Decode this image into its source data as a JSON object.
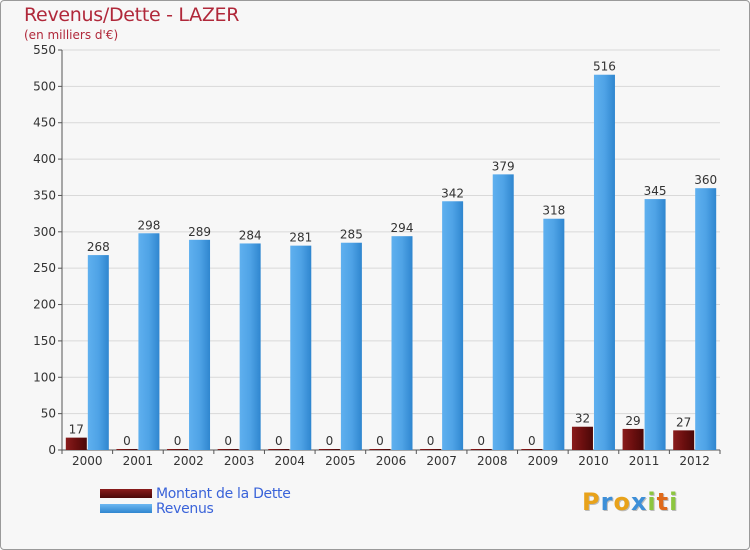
{
  "chart_data": {
    "type": "bar",
    "title": "Revenus/Dette - LAZER",
    "subtitle": "(en milliers d'€)",
    "categories": [
      "2000",
      "2001",
      "2002",
      "2003",
      "2004",
      "2005",
      "2006",
      "2007",
      "2008",
      "2009",
      "2010",
      "2011",
      "2012"
    ],
    "series": [
      {
        "name": "Montant de la Dette",
        "color": "#6b0f0f",
        "values": [
          17,
          0,
          0,
          0,
          0,
          0,
          0,
          0,
          0,
          0,
          32,
          29,
          27
        ]
      },
      {
        "name": "Revenus",
        "color": "#4fa3e6",
        "values": [
          268,
          298,
          289,
          284,
          281,
          285,
          294,
          342,
          379,
          318,
          516,
          345,
          360
        ]
      }
    ],
    "ylim": [
      0,
      550
    ],
    "yticks": [
      0,
      50,
      100,
      150,
      200,
      250,
      300,
      350,
      400,
      450,
      500,
      550
    ],
    "xlabel": "",
    "ylabel": "",
    "grid": true,
    "legend_position": "bottom-left"
  },
  "logo": {
    "text": "Proxiti",
    "letters": [
      {
        "char": "P",
        "color": "#e8a21a"
      },
      {
        "char": "r",
        "color": "#3d8fd8"
      },
      {
        "char": "o",
        "color": "#e8a21a"
      },
      {
        "char": "x",
        "color": "#3d8fd8"
      },
      {
        "char": "i",
        "color": "#8cc63f"
      },
      {
        "char": "t",
        "color": "#e06a1a"
      },
      {
        "char": "i",
        "color": "#8cc63f"
      }
    ]
  }
}
